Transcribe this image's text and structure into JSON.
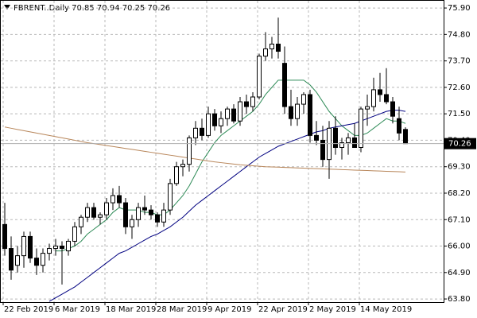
{
  "chart_data": {
    "type": "candlestick",
    "title": "FBRENT..Daily  70.85 70.94 70.25 70.26",
    "categories": [
      "22 Feb 2019",
      null,
      null,
      null,
      null,
      null,
      null,
      null,
      "6 Mar 2019",
      null,
      null,
      null,
      null,
      null,
      null,
      null,
      "18 Mar 2019",
      null,
      null,
      null,
      null,
      null,
      null,
      null,
      "28 Mar 2019",
      null,
      null,
      null,
      null,
      null,
      null,
      null,
      "9 Apr 2019",
      null,
      null,
      null,
      null,
      null,
      null,
      null,
      "22 Apr 2019",
      null,
      null,
      null,
      null,
      null,
      null,
      null,
      "2 May 2019",
      null,
      null,
      null,
      null,
      null,
      null,
      null,
      "14 May 2019",
      null,
      null,
      null,
      null,
      null,
      null,
      null
    ],
    "open": [
      66.9,
      65.9,
      65.2,
      65.6,
      66.4,
      65.5,
      65.2,
      65.7,
      65.9,
      66.0,
      65.8,
      66.2,
      66.8,
      67.2,
      67.6,
      67.2,
      67.3,
      67.8,
      68.1,
      67.8,
      66.8,
      67.1,
      67.6,
      67.5,
      67.3,
      67.0,
      67.5,
      68.6,
      69.3,
      69.4,
      70.5,
      70.9,
      70.6,
      71.5,
      71.0,
      71.3,
      71.7,
      71.2,
      72.0,
      71.8,
      72.2,
      73.9,
      74.2,
      74.4,
      73.6,
      71.8,
      71.3,
      71.9,
      72.3,
      70.6,
      70.4,
      69.6,
      70.9,
      70.1,
      70.3,
      70.5,
      70.1,
      71.7,
      71.8,
      72.5,
      72.3,
      72.0,
      71.3,
      70.85
    ],
    "high": [
      67.8,
      66.4,
      66.0,
      66.6,
      66.6,
      65.9,
      65.9,
      66.1,
      66.3,
      66.2,
      66.3,
      67.0,
      67.3,
      67.8,
      67.8,
      67.4,
      68.0,
      68.4,
      68.5,
      68.0,
      67.3,
      67.8,
      68.1,
      67.7,
      67.4,
      67.8,
      68.8,
      69.5,
      69.6,
      70.6,
      71.2,
      71.3,
      71.8,
      71.7,
      71.6,
      71.8,
      71.9,
      72.2,
      72.3,
      72.4,
      74.0,
      74.9,
      74.7,
      75.5,
      74.3,
      72.5,
      72.2,
      72.4,
      72.5,
      71.2,
      71.0,
      71.2,
      71.4,
      70.5,
      70.7,
      71.1,
      71.8,
      72.3,
      73.0,
      73.2,
      73.4,
      72.2,
      71.8,
      70.94
    ],
    "low": [
      65.6,
      64.6,
      64.9,
      65.1,
      65.3,
      64.8,
      64.9,
      65.4,
      65.6,
      64.4,
      65.6,
      66.0,
      66.5,
      67.0,
      67.1,
      66.9,
      67.1,
      67.5,
      67.6,
      66.5,
      66.3,
      66.8,
      67.3,
      67.1,
      66.8,
      66.8,
      67.3,
      68.5,
      68.9,
      69.1,
      70.2,
      70.4,
      70.5,
      70.8,
      70.7,
      71.0,
      71.1,
      71.0,
      71.5,
      71.6,
      72.1,
      73.7,
      73.8,
      73.8,
      71.5,
      71.0,
      71.0,
      71.5,
      70.3,
      70.2,
      69.3,
      68.8,
      69.8,
      69.6,
      69.8,
      70.2,
      69.9,
      71.0,
      71.6,
      72.0,
      71.9,
      71.1,
      70.4,
      70.25
    ],
    "close": [
      65.9,
      65.0,
      65.6,
      66.4,
      65.5,
      65.2,
      65.7,
      65.9,
      66.0,
      65.9,
      66.2,
      66.8,
      67.2,
      67.6,
      67.2,
      67.3,
      67.8,
      68.1,
      67.8,
      66.8,
      67.1,
      67.6,
      67.5,
      67.3,
      67.0,
      67.5,
      68.6,
      69.3,
      69.4,
      70.5,
      70.9,
      70.6,
      71.5,
      71.0,
      71.3,
      71.7,
      71.2,
      72.0,
      71.8,
      72.2,
      73.9,
      74.2,
      74.4,
      74.1,
      71.8,
      71.3,
      71.9,
      72.3,
      70.6,
      70.4,
      69.6,
      70.9,
      70.1,
      70.3,
      70.5,
      70.1,
      71.7,
      71.8,
      72.5,
      72.3,
      72.0,
      71.4,
      70.7,
      70.26
    ],
    "lines": [
      {
        "color": "#2e8b57",
        "values": [
          null,
          null,
          null,
          null,
          null,
          null,
          null,
          null,
          65.8,
          65.8,
          65.9,
          66.0,
          66.2,
          66.5,
          66.7,
          66.9,
          67.1,
          67.4,
          67.6,
          67.5,
          67.5,
          67.5,
          67.4,
          67.4,
          67.3,
          67.3,
          67.5,
          67.8,
          68.1,
          68.5,
          69.0,
          69.5,
          69.9,
          70.3,
          70.6,
          70.8,
          71.0,
          71.2,
          71.4,
          71.6,
          71.9,
          72.3,
          72.6,
          72.9,
          72.9,
          72.9,
          72.9,
          72.9,
          72.7,
          72.4,
          72.0,
          71.6,
          71.3,
          71.0,
          70.8,
          70.6,
          70.6,
          70.7,
          70.9,
          71.1,
          71.3,
          71.2,
          71.2,
          71.1
        ]
      },
      {
        "color": "#000080",
        "values": [
          null,
          null,
          null,
          null,
          null,
          null,
          null,
          63.7,
          63.85,
          64.0,
          64.15,
          64.3,
          64.5,
          64.7,
          64.9,
          65.1,
          65.3,
          65.5,
          65.7,
          65.8,
          65.95,
          66.1,
          66.25,
          66.4,
          66.5,
          66.65,
          66.8,
          67.0,
          67.2,
          67.45,
          67.7,
          67.9,
          68.1,
          68.3,
          68.5,
          68.7,
          68.9,
          69.1,
          69.3,
          69.5,
          69.7,
          69.85,
          70.0,
          70.15,
          70.25,
          70.35,
          70.45,
          70.55,
          70.65,
          70.75,
          70.8,
          70.9,
          70.95,
          71.0,
          71.05,
          71.1,
          71.2,
          71.3,
          71.4,
          71.5,
          71.6,
          71.65,
          71.65,
          71.6
        ]
      },
      {
        "color": "#b8865a",
        "values": [
          70.95,
          70.9,
          70.85,
          70.8,
          70.75,
          70.7,
          70.65,
          70.6,
          70.55,
          70.5,
          70.45,
          70.4,
          70.35,
          70.3,
          70.26,
          70.22,
          70.18,
          70.14,
          70.1,
          70.06,
          70.02,
          69.98,
          69.94,
          69.9,
          69.86,
          69.82,
          69.78,
          69.74,
          69.7,
          69.66,
          69.62,
          69.58,
          69.54,
          69.5,
          69.47,
          69.44,
          69.41,
          69.38,
          69.36,
          69.34,
          69.32,
          69.3,
          69.29,
          69.28,
          69.27,
          69.26,
          69.25,
          69.24,
          69.23,
          69.22,
          69.21,
          69.2,
          69.19,
          69.18,
          69.17,
          69.16,
          69.15,
          69.14,
          69.13,
          69.12,
          69.11,
          69.1,
          69.09,
          69.08
        ]
      }
    ],
    "bull_color": "#ffffff",
    "bear_color": "#000000",
    "ylim": [
      63.67,
      76.2
    ],
    "yticks": [
      {
        "value": 63.8,
        "label": "63.80"
      },
      {
        "value": 64.9,
        "label": "64.90"
      },
      {
        "value": 66.0,
        "label": "66.00"
      },
      {
        "value": 67.1,
        "label": "67.10"
      },
      {
        "value": 68.2,
        "label": "68.20"
      },
      {
        "value": 69.3,
        "label": "69.30"
      },
      {
        "value": 70.4,
        "label": "70.40"
      },
      {
        "value": 71.5,
        "label": "71.50"
      },
      {
        "value": 72.6,
        "label": "72.60"
      },
      {
        "value": 73.7,
        "label": "73.70"
      },
      {
        "value": 74.8,
        "label": "74.80"
      },
      {
        "value": 75.9,
        "label": "75.90"
      }
    ],
    "grid": true
  }
}
